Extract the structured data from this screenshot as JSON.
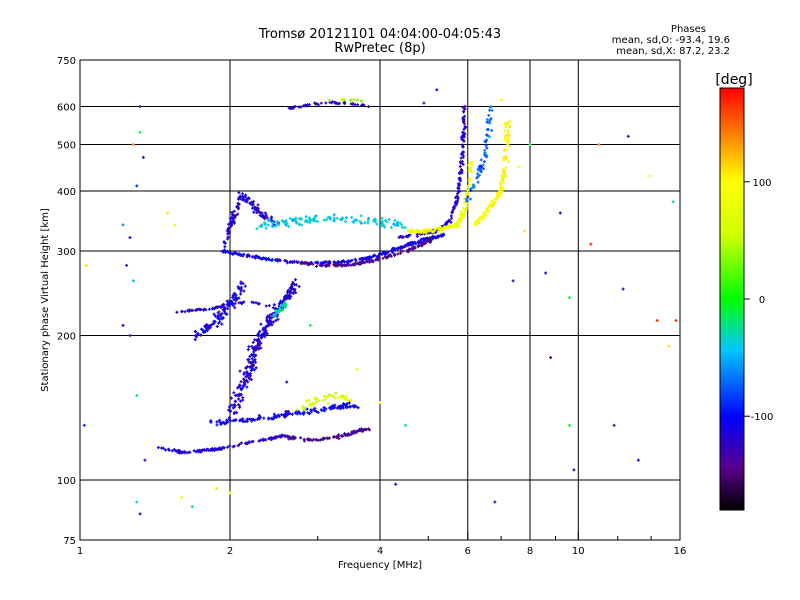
{
  "header": {
    "title": "Tromsø 20121101 04:04:00-04:05:43",
    "subtitle": "RwPretec (8p)",
    "stats_title": "Phases",
    "stats_o": "mean, sd,O: -93.4, 19.6",
    "stats_x": "mean, sd,X:  87.2, 23.2"
  },
  "colorbar": {
    "unit_label": "[deg]",
    "range": [
      -180,
      180
    ],
    "ticks": [
      {
        "value": 100,
        "label": "100"
      },
      {
        "value": 0,
        "label": "0"
      },
      {
        "value": -100,
        "label": "-100"
      }
    ]
  },
  "chart_data": {
    "type": "scatter",
    "xlabel": "Frequency [MHz]",
    "ylabel": "Stationary phase Virtual Height [km]",
    "x_scale": "log",
    "y_scale": "log",
    "xlim": [
      1,
      16
    ],
    "ylim": [
      75,
      750
    ],
    "x_ticks": [
      {
        "value": 1,
        "label": "1"
      },
      {
        "value": 2,
        "label": "2"
      },
      {
        "value": 4,
        "label": "4"
      },
      {
        "value": 6,
        "label": "6"
      },
      {
        "value": 8,
        "label": "8"
      },
      {
        "value": 10,
        "label": "10"
      },
      {
        "value": 16,
        "label": "16"
      }
    ],
    "x_gridlines": [
      2,
      4,
      6,
      8,
      10
    ],
    "y_ticks": [
      {
        "value": 75,
        "label": "75"
      },
      {
        "value": 100,
        "label": "100"
      },
      {
        "value": 200,
        "label": "200"
      },
      {
        "value": 300,
        "label": "300"
      },
      {
        "value": 400,
        "label": "400"
      },
      {
        "value": 500,
        "label": "500"
      },
      {
        "value": 600,
        "label": "600"
      },
      {
        "value": 750,
        "label": "750"
      }
    ],
    "y_gridlines": [
      100,
      200,
      300,
      400,
      500,
      600
    ],
    "grid": true,
    "colormap": "rainbow",
    "color_variable": "Phase [deg]",
    "traces": [
      {
        "x": [
          1.95,
          2.1,
          2.3,
          2.6,
          3.0,
          3.4,
          3.8,
          4.2,
          4.6,
          5.0,
          5.4
        ],
        "y": [
          300,
          295,
          290,
          285,
          283,
          285,
          290,
          300,
          310,
          318,
          325
        ],
        "phase": -110,
        "spread_x": 0.02,
        "spread_y": 0.008,
        "count": 260
      },
      {
        "x": [
          2.7,
          3.0,
          3.3,
          3.6,
          3.9,
          4.3,
          4.7,
          5.1
        ],
        "y": [
          285,
          280,
          280,
          282,
          287,
          295,
          305,
          318
        ],
        "phase": -140,
        "spread_x": 0.02,
        "spread_y": 0.008,
        "count": 140
      },
      {
        "x": [
          1.95,
          2.0,
          2.05,
          2.1,
          2.2,
          2.3,
          2.5
        ],
        "y": [
          305,
          330,
          360,
          390,
          380,
          360,
          340
        ],
        "phase": -115,
        "spread_x": 0.02,
        "spread_y": 0.025,
        "count": 120
      },
      {
        "x": [
          2.3,
          2.6,
          3.0,
          3.5,
          4.0,
          4.5
        ],
        "y": [
          340,
          345,
          350,
          350,
          345,
          340
        ],
        "phase": -40,
        "spread_x": 0.03,
        "spread_y": 0.03,
        "count": 120
      },
      {
        "x": [
          4.3,
          4.8,
          5.2,
          5.5,
          5.7,
          5.8,
          5.85,
          5.9,
          5.9
        ],
        "y": [
          320,
          325,
          330,
          345,
          380,
          430,
          480,
          540,
          600
        ],
        "phase": -120,
        "spread_x": 0.012,
        "spread_y": 0.01,
        "count": 170
      },
      {
        "x": [
          4.6,
          5.0,
          5.4,
          5.7,
          5.9,
          6.0,
          6.1
        ],
        "y": [
          330,
          330,
          335,
          340,
          360,
          400,
          460
        ],
        "phase": 85,
        "spread_x": 0.015,
        "spread_y": 0.015,
        "count": 140
      },
      {
        "x": [
          6.2,
          6.5,
          6.8,
          7.0,
          7.1,
          7.2,
          7.2
        ],
        "y": [
          340,
          360,
          380,
          400,
          440,
          500,
          560
        ],
        "phase": 95,
        "spread_x": 0.02,
        "spread_y": 0.015,
        "count": 120
      },
      {
        "x": [
          6.0,
          6.3,
          6.5,
          6.6,
          6.7
        ],
        "y": [
          380,
          430,
          480,
          540,
          600
        ],
        "phase": -70,
        "spread_x": 0.02,
        "spread_y": 0.02,
        "count": 60
      },
      {
        "x": [
          1.45,
          1.6,
          1.75,
          1.9,
          2.05,
          2.2,
          2.4,
          2.6
        ],
        "y": [
          117,
          114,
          115,
          116,
          118,
          120,
          122,
          124
        ],
        "phase": -115,
        "spread_x": 0.015,
        "spread_y": 0.008,
        "count": 120
      },
      {
        "x": [
          2.6,
          2.9,
          3.2,
          3.5,
          3.8
        ],
        "y": [
          123,
          121,
          122,
          125,
          128
        ],
        "phase": -140,
        "spread_x": 0.02,
        "spread_y": 0.01,
        "count": 90
      },
      {
        "x": [
          2.0,
          2.1,
          2.2,
          2.3,
          2.45,
          2.6,
          2.7
        ],
        "y": [
          135,
          155,
          175,
          200,
          220,
          240,
          255
        ],
        "phase": -115,
        "spread_x": 0.035,
        "spread_y": 0.04,
        "count": 260
      },
      {
        "x": [
          1.7,
          1.85,
          1.95,
          2.05,
          2.15
        ],
        "y": [
          200,
          210,
          225,
          240,
          260
        ],
        "phase": -110,
        "spread_x": 0.03,
        "spread_y": 0.03,
        "count": 100
      },
      {
        "x": [
          1.85,
          2.1,
          2.4,
          2.7,
          3.0,
          3.3,
          3.6
        ],
        "y": [
          132,
          133,
          135,
          138,
          140,
          142,
          143
        ],
        "phase": -105,
        "spread_x": 0.04,
        "spread_y": 0.02,
        "count": 150
      },
      {
        "x": [
          2.7,
          2.9,
          3.1,
          3.3,
          3.5
        ],
        "y": [
          140,
          145,
          148,
          150,
          148
        ],
        "phase": 60,
        "spread_x": 0.02,
        "spread_y": 0.03,
        "count": 40
      },
      {
        "x": [
          1.55,
          1.7,
          1.85,
          2.0,
          2.2,
          2.4,
          2.55
        ],
        "y": [
          224,
          226,
          228,
          232,
          235,
          230,
          225
        ],
        "phase": -118,
        "spread_x": 0.01,
        "spread_y": 0.006,
        "count": 60
      },
      {
        "x": [
          2.45,
          2.5,
          2.55,
          2.6
        ],
        "y": [
          220,
          225,
          230,
          235
        ],
        "phase": -30,
        "spread_x": 0.01,
        "spread_y": 0.02,
        "count": 25
      },
      {
        "x": [
          2.6,
          2.9,
          3.2,
          3.5,
          3.8
        ],
        "y": [
          595,
          605,
          612,
          608,
          600
        ],
        "phase": -120,
        "spread_x": 0.02,
        "spread_y": 0.008,
        "count": 45
      },
      {
        "x": [
          3.0,
          3.4,
          3.7
        ],
        "y": [
          610,
          620,
          615
        ],
        "phase": 40,
        "spread_x": 0.03,
        "spread_y": 0.01,
        "count": 10
      }
    ],
    "scattered_points": [
      {
        "x": 1.32,
        "y": 600,
        "phase": -130
      },
      {
        "x": 1.32,
        "y": 530,
        "phase": -10
      },
      {
        "x": 1.28,
        "y": 500,
        "phase": 140
      },
      {
        "x": 1.34,
        "y": 470,
        "phase": -110
      },
      {
        "x": 1.3,
        "y": 410,
        "phase": -90
      },
      {
        "x": 1.22,
        "y": 340,
        "phase": -60
      },
      {
        "x": 1.26,
        "y": 320,
        "phase": -110
      },
      {
        "x": 1.24,
        "y": 280,
        "phase": -130
      },
      {
        "x": 1.28,
        "y": 260,
        "phase": -50
      },
      {
        "x": 1.22,
        "y": 210,
        "phase": -100
      },
      {
        "x": 1.26,
        "y": 200,
        "phase": -140
      },
      {
        "x": 1.3,
        "y": 150,
        "phase": -20
      },
      {
        "x": 1.35,
        "y": 110,
        "phase": -120
      },
      {
        "x": 1.3,
        "y": 90,
        "phase": -40
      },
      {
        "x": 1.32,
        "y": 85,
        "phase": -110
      },
      {
        "x": 1.5,
        "y": 360,
        "phase": 110
      },
      {
        "x": 1.55,
        "y": 340,
        "phase": 80
      },
      {
        "x": 1.6,
        "y": 92,
        "phase": 80
      },
      {
        "x": 1.68,
        "y": 88,
        "phase": -30
      },
      {
        "x": 1.88,
        "y": 96,
        "phase": 110
      },
      {
        "x": 2.0,
        "y": 94,
        "phase": 60
      },
      {
        "x": 2.6,
        "y": 160,
        "phase": -120
      },
      {
        "x": 2.9,
        "y": 210,
        "phase": -10
      },
      {
        "x": 3.6,
        "y": 170,
        "phase": 60
      },
      {
        "x": 4.0,
        "y": 145,
        "phase": 80
      },
      {
        "x": 4.3,
        "y": 98,
        "phase": -110
      },
      {
        "x": 4.5,
        "y": 130,
        "phase": -20
      },
      {
        "x": 4.9,
        "y": 610,
        "phase": -120
      },
      {
        "x": 5.2,
        "y": 650,
        "phase": -110
      },
      {
        "x": 6.8,
        "y": 90,
        "phase": -130
      },
      {
        "x": 7.0,
        "y": 620,
        "phase": 90
      },
      {
        "x": 7.4,
        "y": 260,
        "phase": -130
      },
      {
        "x": 7.8,
        "y": 330,
        "phase": 110
      },
      {
        "x": 8.6,
        "y": 270,
        "phase": -120
      },
      {
        "x": 8.8,
        "y": 180,
        "phase": -150
      },
      {
        "x": 9.2,
        "y": 360,
        "phase": -120
      },
      {
        "x": 9.6,
        "y": 240,
        "phase": -10
      },
      {
        "x": 9.6,
        "y": 130,
        "phase": -10
      },
      {
        "x": 9.8,
        "y": 105,
        "phase": -130
      },
      {
        "x": 10.6,
        "y": 310,
        "phase": 170
      },
      {
        "x": 11.0,
        "y": 500,
        "phase": 140
      },
      {
        "x": 11.8,
        "y": 130,
        "phase": -130
      },
      {
        "x": 12.3,
        "y": 250,
        "phase": -120
      },
      {
        "x": 12.6,
        "y": 520,
        "phase": -140
      },
      {
        "x": 13.2,
        "y": 110,
        "phase": -120
      },
      {
        "x": 13.9,
        "y": 430,
        "phase": 100
      },
      {
        "x": 14.4,
        "y": 215,
        "phase": 170
      },
      {
        "x": 15.2,
        "y": 190,
        "phase": 110
      },
      {
        "x": 15.5,
        "y": 380,
        "phase": -30
      },
      {
        "x": 15.7,
        "y": 215,
        "phase": 170
      },
      {
        "x": 1.03,
        "y": 280,
        "phase": 110
      },
      {
        "x": 1.02,
        "y": 130,
        "phase": -90
      },
      {
        "x": 8.0,
        "y": 500,
        "phase": -10
      },
      {
        "x": 7.6,
        "y": 450,
        "phase": 100
      }
    ]
  }
}
